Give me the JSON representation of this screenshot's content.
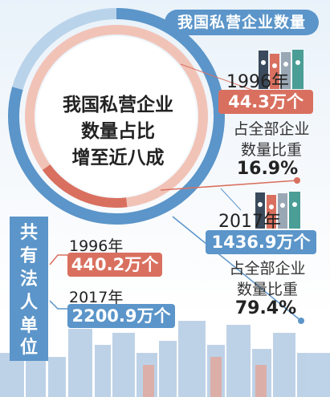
{
  "title": "我国私营企业数量",
  "center_text": [
    "我国私营企业",
    "数量占比",
    "增至近八成"
  ],
  "private_enterprises": {
    "y1996": {
      "year": "1996年",
      "count": "44.3万个",
      "share_label_1": "占全部企业",
      "share_label_2": "数量比重",
      "share_value": "16.9%"
    },
    "y2017": {
      "year": "2017年",
      "count": "1436.9万个",
      "share_label_1": "占全部企业",
      "share_label_2": "数量比重",
      "share_value": "79.4%"
    }
  },
  "legal_entities": {
    "label_chars": [
      "共",
      "有",
      "法",
      "人",
      "单",
      "位"
    ],
    "y1996": {
      "year": "1996年",
      "count": "440.2万个"
    },
    "y2017": {
      "year": "2017年",
      "count": "2200.9万个"
    }
  },
  "colors": {
    "blue": "#5b95c9",
    "red": "#d9705f",
    "light_blue": "#b9d3ea",
    "light_red": "#f1c3b7"
  },
  "chart_data": {
    "type": "pie",
    "title": "我国私营企业数量占比增至近八成",
    "series": [
      {
        "name": "1996年",
        "values": [
          16.9,
          83.1
        ]
      },
      {
        "name": "2017年",
        "values": [
          79.4,
          20.6
        ]
      }
    ],
    "unit": "%"
  }
}
